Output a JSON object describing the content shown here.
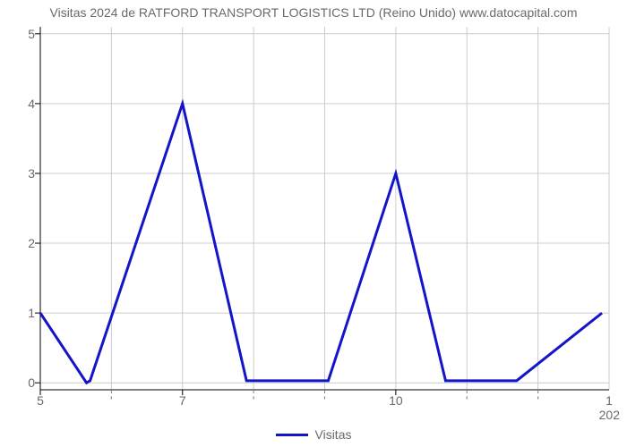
{
  "chart": {
    "type": "line",
    "title": "Visitas 2024 de RATFORD TRANSPORT LOGISTICS LTD (Reino Unido) www.datocapital.com",
    "title_fontsize": 14,
    "title_color": "#6a6a6a",
    "background_color": "#ffffff",
    "grid_color": "#cccccc",
    "grid_width": 1,
    "axis_color": "#000000",
    "axis_width": 1,
    "tick_color": "#000000",
    "minor_tick_color": "#808080",
    "series": {
      "name": "Visitas",
      "color": "#1414c8",
      "line_width": 3,
      "x": [
        5.0,
        5.65,
        5.7,
        7.0,
        7.9,
        8.0,
        9.0,
        9.05,
        10.0,
        10.7,
        10.8,
        11.6,
        11.7,
        12.9
      ],
      "y": [
        1.0,
        0.0,
        0.03,
        4.0,
        0.03,
        0.03,
        0.03,
        0.03,
        3.0,
        0.03,
        0.03,
        0.03,
        0.03,
        1.0
      ]
    },
    "xlim": [
      5,
      13
    ],
    "ylim": [
      -0.1,
      5.1
    ],
    "xtick_positions": [
      5,
      7,
      10
    ],
    "xtick_labels": [
      "5",
      "7",
      "10"
    ],
    "x_right_label": "1",
    "x_minor_positions": [
      6,
      8,
      9,
      11,
      12
    ],
    "x_minor_labels": [
      "'",
      "'",
      "'",
      "'",
      "'"
    ],
    "x_secondary_label": "202",
    "ytick_positions": [
      0,
      1,
      2,
      3,
      4,
      5
    ],
    "ytick_labels": [
      "0",
      "1",
      "2",
      "3",
      "4",
      "5"
    ],
    "label_fontsize": 14,
    "label_color": "#6a6a6a"
  }
}
